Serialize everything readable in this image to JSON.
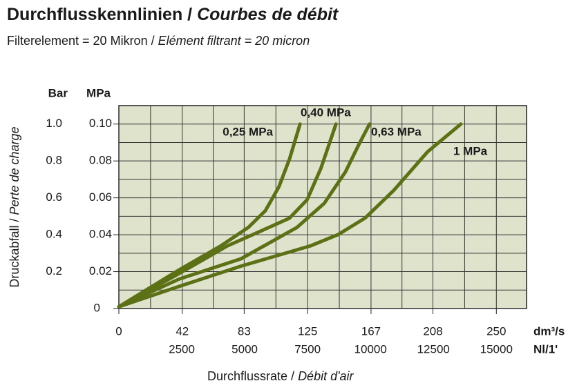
{
  "chart_data": {
    "type": "line",
    "title": [
      "Durchflusskennlinien /",
      "Courbes de débit"
    ],
    "subtitle": [
      "Filterelement = 20 Mikron /",
      "Elément filtrant = 20 micron"
    ],
    "y_label": [
      "Druckabfall /",
      "Perte de charge"
    ],
    "x_label": [
      "Durchflussrate /",
      "Débit d'air"
    ],
    "y_unit": "MPa",
    "y2_unit": "Bar",
    "x_unit": "dm³/s",
    "x2_unit": "Nl/1'",
    "xlim": [
      0,
      270
    ],
    "xticks": [
      0,
      42,
      83,
      125,
      167,
      208,
      250
    ],
    "x_minor_ticks": [
      21,
      62.5,
      104,
      146,
      187.5,
      229
    ],
    "x2lim": [
      0,
      16200
    ],
    "x2ticks": [
      2500,
      5000,
      7500,
      10000,
      12500,
      15000
    ],
    "ylim": [
      0,
      0.11
    ],
    "yticks": [
      0,
      0.02,
      0.04,
      0.06,
      0.08,
      {
        "value": 0.1,
        "label": "0.10"
      }
    ],
    "y_minor_ticks": [
      0.01,
      0.03,
      0.05,
      0.07,
      0.09
    ],
    "y2lim": [
      0,
      1.1
    ],
    "y2ticks": [
      0.2,
      0.4,
      0.6,
      0.8,
      {
        "value": 1,
        "label": "1.0"
      }
    ],
    "grid": true,
    "plot_background": "#dfe3cc",
    "series": [
      {
        "name": "0,25 MPa",
        "color": "#5c7116",
        "x": [
          0,
          40,
          67.6,
          85.8,
          97,
          106,
          113,
          120
        ],
        "values": [
          0.001,
          0.021,
          0.034,
          0.044,
          0.053,
          0.066,
          0.081,
          0.1
        ]
      },
      {
        "name": "0,40 MPa",
        "color": "#5c7116",
        "x": [
          0,
          40,
          72,
          99.5,
          113,
          124.7,
          133.8,
          143.8
        ],
        "values": [
          0.001,
          0.019,
          0.034,
          0.044,
          0.049,
          0.059,
          0.076,
          0.1
        ]
      },
      {
        "name": "0,63 MPa",
        "color": "#5c7116",
        "x": [
          0,
          40,
          81,
          118,
          136,
          150,
          159,
          166
        ],
        "values": [
          0.001,
          0.016,
          0.027,
          0.044,
          0.057,
          0.074,
          0.089,
          0.1
        ]
      },
      {
        "name": "1 MPa",
        "color": "#5c7116",
        "x": [
          0,
          40,
          81,
          127,
          145,
          163,
          182,
          204.5,
          226.5
        ],
        "values": [
          0.001,
          0.012,
          0.023,
          0.034,
          0.04,
          0.049,
          0.064,
          0.085,
          0.1
        ]
      }
    ]
  }
}
